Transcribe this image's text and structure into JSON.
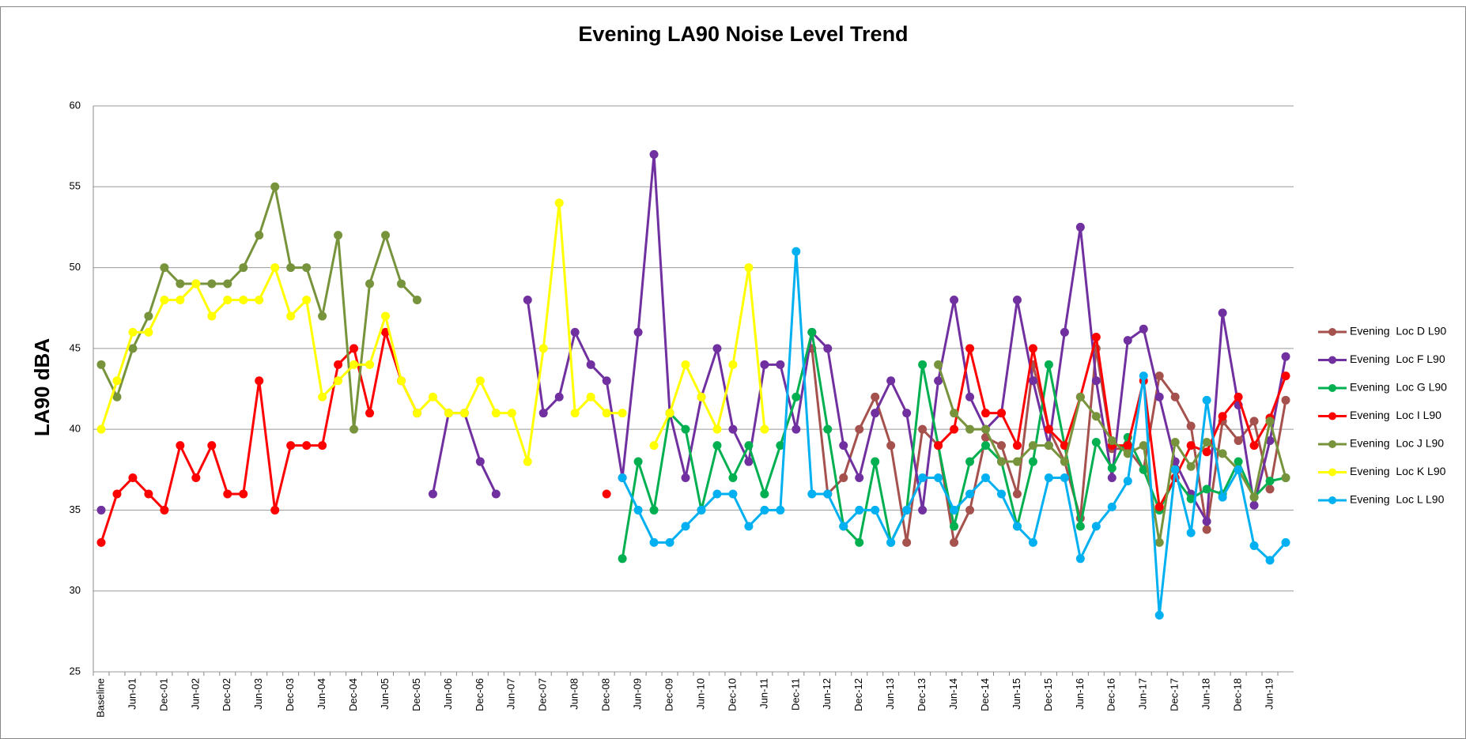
{
  "chart_data": {
    "type": "line",
    "title": "Evening LA90 Noise Level Trend",
    "y_label": "LA90 dBA",
    "categories": [
      "Baseline",
      null,
      "Jun-01",
      null,
      "Dec-01",
      null,
      "Jun-02",
      null,
      "Dec-02",
      null,
      "Jun-03",
      null,
      "Dec-03",
      null,
      "Jun-04",
      null,
      "Dec-04",
      null,
      "Jun-05",
      null,
      "Dec-05",
      null,
      "Jun-06",
      null,
      "Dec-06",
      null,
      "Jun-07",
      null,
      "Dec-07",
      null,
      "Jun-08",
      null,
      "Dec-08",
      null,
      "Jun-09",
      null,
      "Dec-09",
      null,
      "Jun-10",
      null,
      "Dec-10",
      null,
      "Jun-11",
      null,
      "Dec-11",
      null,
      "Jun-12",
      null,
      "Dec-12",
      null,
      "Jun-13",
      null,
      "Dec-13",
      null,
      "Jun-14",
      null,
      "Dec-14",
      null,
      "Jun-15",
      null,
      "Dec-15",
      null,
      "Jun-16",
      null,
      "Dec-16",
      null,
      "Jun-17",
      null,
      "Dec-17",
      null,
      "Jun-18",
      null,
      "Dec-18",
      null,
      "Jun-19",
      null
    ],
    "ylim": [
      25,
      60
    ],
    "yticks": [
      25,
      30,
      35,
      40,
      45,
      50,
      55,
      60
    ],
    "grid": true,
    "legend": "right",
    "series": [
      {
        "name": "Evening  Loc D L90",
        "color": "#a5514d",
        "values": [
          null,
          null,
          null,
          null,
          null,
          null,
          null,
          null,
          null,
          null,
          null,
          null,
          null,
          null,
          null,
          null,
          null,
          null,
          null,
          null,
          null,
          null,
          null,
          null,
          null,
          null,
          null,
          null,
          null,
          null,
          null,
          null,
          null,
          null,
          null,
          null,
          null,
          null,
          null,
          null,
          null,
          null,
          null,
          null,
          null,
          45,
          36,
          37,
          40,
          42,
          39,
          33,
          40,
          39,
          33,
          35,
          39.5,
          39,
          36,
          44,
          40,
          38,
          34.5,
          45,
          38.8,
          38.8,
          37.5,
          43.3,
          42,
          40.2,
          33.8,
          40.5,
          39.3,
          40.5,
          36.3,
          41.8
        ]
      },
      {
        "name": "Evening  Loc F L90",
        "color": "#7030a0",
        "values": [
          35,
          null,
          null,
          null,
          null,
          null,
          null,
          null,
          null,
          null,
          null,
          null,
          null,
          null,
          null,
          null,
          null,
          null,
          null,
          null,
          null,
          36,
          41,
          41,
          38,
          36,
          null,
          48,
          41,
          42,
          46,
          44,
          43,
          37,
          46,
          57,
          41,
          37,
          42,
          45,
          40,
          38,
          44,
          44,
          40,
          46,
          45,
          39,
          37,
          41,
          43,
          41,
          35,
          43,
          48,
          42,
          40,
          41,
          48,
          43,
          39,
          46,
          52.5,
          43,
          37,
          45.5,
          46.2,
          42,
          38,
          36,
          34.3,
          47.2,
          41.5,
          35.3,
          39.3,
          44.5
        ]
      },
      {
        "name": "Evening  Loc G L90",
        "color": "#00b050",
        "values": [
          null,
          null,
          null,
          null,
          null,
          null,
          null,
          null,
          null,
          null,
          null,
          null,
          null,
          null,
          null,
          null,
          null,
          null,
          null,
          null,
          null,
          null,
          null,
          null,
          null,
          null,
          null,
          null,
          null,
          null,
          null,
          null,
          null,
          32,
          38,
          35,
          41,
          40,
          35,
          39,
          37,
          39,
          36,
          39,
          42,
          46,
          40,
          34,
          33,
          38,
          33,
          35,
          44,
          39,
          34,
          38,
          39,
          38,
          34,
          38,
          44,
          39,
          34,
          39.2,
          37.6,
          39.5,
          37.5,
          35,
          37,
          35.7,
          36.3,
          36,
          38,
          35.8,
          36.8,
          37
        ]
      },
      {
        "name": "Evening  Loc I L90",
        "color": "#ff0000",
        "values": [
          33,
          36,
          37,
          36,
          35,
          39,
          37,
          39,
          36,
          36,
          43,
          35,
          39,
          39,
          39,
          44,
          45,
          41,
          46,
          43,
          41,
          null,
          null,
          null,
          null,
          null,
          null,
          null,
          null,
          null,
          null,
          null,
          36,
          null,
          null,
          null,
          null,
          null,
          null,
          null,
          null,
          null,
          null,
          null,
          null,
          null,
          null,
          null,
          null,
          null,
          null,
          null,
          null,
          39,
          40,
          45,
          41,
          41,
          39,
          45,
          40,
          39,
          42,
          45.7,
          39,
          39,
          43,
          35.2,
          37,
          39,
          38.6,
          40.8,
          42,
          39,
          40.7,
          43.3
        ]
      },
      {
        "name": "Evening  Loc J L90",
        "color": "#77933c",
        "values": [
          44,
          42,
          45,
          47,
          50,
          49,
          49,
          49,
          49,
          50,
          52,
          55,
          50,
          50,
          47,
          52,
          40,
          49,
          52,
          49,
          48,
          null,
          null,
          null,
          null,
          null,
          null,
          null,
          null,
          null,
          null,
          null,
          null,
          null,
          null,
          null,
          null,
          null,
          null,
          null,
          null,
          null,
          null,
          null,
          null,
          null,
          null,
          null,
          null,
          null,
          null,
          null,
          null,
          44,
          41,
          40,
          40,
          38,
          38,
          39,
          39,
          38,
          42,
          40.8,
          39.3,
          38.5,
          39,
          33,
          39.2,
          37.7,
          39.2,
          38.5,
          37.5,
          35.8,
          40.5,
          37
        ]
      },
      {
        "name": "Evening  Loc K L90",
        "color": "#ffff00",
        "values": [
          40,
          43,
          46,
          46,
          48,
          48,
          49,
          47,
          48,
          48,
          48,
          50,
          47,
          48,
          42,
          43,
          44,
          44,
          47,
          43,
          41,
          42,
          41,
          41,
          43,
          41,
          41,
          38,
          45,
          54,
          41,
          42,
          41,
          41,
          null,
          39,
          41,
          44,
          42,
          40,
          44,
          50,
          40,
          null,
          null,
          null,
          null,
          null,
          null,
          null,
          null,
          null,
          null,
          null,
          null,
          null,
          null,
          null,
          null,
          null,
          null,
          null,
          null,
          null,
          null,
          null,
          null,
          null,
          null,
          null,
          null,
          null,
          null,
          null,
          null,
          null
        ]
      },
      {
        "name": "Evening  Loc L L90",
        "color": "#00b0f0",
        "values": [
          null,
          null,
          null,
          null,
          null,
          null,
          null,
          null,
          null,
          null,
          null,
          null,
          null,
          null,
          null,
          null,
          null,
          null,
          null,
          null,
          null,
          null,
          null,
          null,
          null,
          null,
          null,
          null,
          null,
          null,
          null,
          null,
          null,
          37,
          35,
          33,
          33,
          34,
          35,
          36,
          36,
          34,
          35,
          35,
          51,
          36,
          36,
          34,
          35,
          35,
          33,
          35,
          37,
          37,
          35,
          36,
          37,
          36,
          34,
          33,
          37,
          37,
          32,
          34,
          35.2,
          36.8,
          43.3,
          28.5,
          37.5,
          33.6,
          41.8,
          35.8,
          37.5,
          32.8,
          31.9,
          33
        ]
      }
    ]
  }
}
